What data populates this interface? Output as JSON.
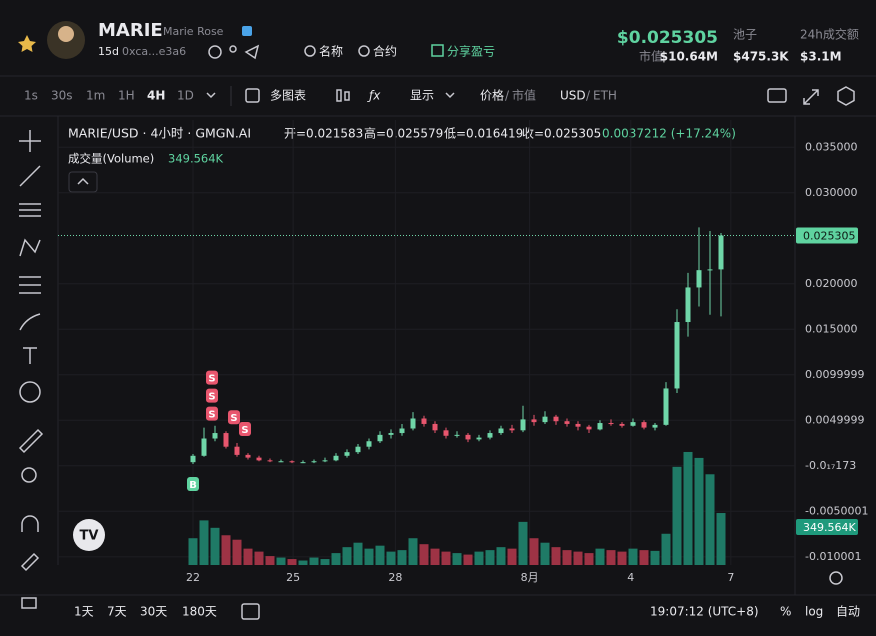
{
  "header": {
    "name": "MARIE",
    "subname": "Marie Rose",
    "age": "15d",
    "address": "0xca...e3a6",
    "links": [
      "名称",
      "合约",
      "分享盈亏"
    ],
    "price": "$0.025305",
    "stats": [
      {
        "label": "市值",
        "value": "$10.64M"
      },
      {
        "label": "池子",
        "value": "$475.3K"
      },
      {
        "label": "24h成交额",
        "value": "$3.1M"
      }
    ]
  },
  "toolbar": {
    "intervals": [
      "1s",
      "30s",
      "1m",
      "1H",
      "4H",
      "1D"
    ],
    "active": 4,
    "multi_chart": "多图表",
    "display": "显示",
    "price_toggle": [
      "价格",
      "市值"
    ],
    "currency_toggle": [
      "USD",
      "ETH"
    ],
    "separator": "/"
  },
  "chart": {
    "type": "candlestick",
    "symbol": "MARIE/USD · 4小时 · GMGN.AI",
    "ohlc": [
      "开=0.021583",
      "高=0.025579",
      "低=0.016419",
      "收=0.025305",
      "0.0037212 (+17.24%)"
    ],
    "volume_label": "成交量(Volume)",
    "volume_value": "349.564K",
    "last_price": 0.025305,
    "up_color": "#6fd6a8",
    "down_color": "#e8566e",
    "volume_up_color": "#1f7a66",
    "volume_down_color": "#9e3345",
    "ylim": [
      -0.0109,
      0.038
    ],
    "yticks": [
      {
        "value": 0.035,
        "label": "0.035000"
      },
      {
        "value": 0.03,
        "label": "0.030000"
      },
      {
        "value": 0.02,
        "label": "0.020000"
      },
      {
        "value": 0.015,
        "label": "0.015000"
      },
      0.0099999,
      0.0049999,
      {
        "value": -1.7173e-18,
        "label": "-0.0₁₇173"
      },
      -0.0050001,
      -0.010001
    ],
    "xticks": [
      {
        "value": 0,
        "label": "22"
      },
      {
        "value": 9.1,
        "label": "25"
      },
      {
        "value": 18.4,
        "label": "28"
      },
      {
        "value": 30.6,
        "label": "8月"
      },
      {
        "value": 39.8,
        "label": "4"
      },
      {
        "value": 48.9,
        "label": "7"
      }
    ],
    "candles": [
      [
        0.0004,
        0.0013,
        0.0002,
        0.0011
      ],
      [
        0.0011,
        0.0042,
        0.001,
        0.003
      ],
      [
        0.003,
        0.0044,
        0.0027,
        0.0036
      ],
      [
        0.0036,
        0.0038,
        0.0019,
        0.0021
      ],
      [
        0.0021,
        0.0025,
        0.001,
        0.0012
      ],
      [
        0.0012,
        0.0014,
        0.0007,
        0.0009
      ],
      [
        0.0009,
        0.0011,
        0.0005,
        0.0006
      ],
      [
        0.0006,
        0.0008,
        0.0004,
        0.0005
      ],
      [
        0.0005,
        0.0007,
        0.0004,
        0.0005
      ],
      [
        0.0005,
        0.0006,
        0.0003,
        0.0004
      ],
      [
        0.0004,
        0.0006,
        0.0003,
        0.0004
      ],
      [
        0.0004,
        0.0007,
        0.0003,
        0.0005
      ],
      [
        0.0005,
        0.0009,
        0.0004,
        0.0006
      ],
      [
        0.0006,
        0.0014,
        0.0005,
        0.0011
      ],
      [
        0.0011,
        0.0018,
        0.0009,
        0.0015
      ],
      [
        0.0015,
        0.0024,
        0.0013,
        0.0021
      ],
      [
        0.0021,
        0.003,
        0.0018,
        0.0027
      ],
      [
        0.0027,
        0.0038,
        0.0025,
        0.0034
      ],
      [
        0.0034,
        0.004,
        0.003,
        0.0036
      ],
      [
        0.0036,
        0.0046,
        0.0033,
        0.0041
      ],
      [
        0.0041,
        0.0059,
        0.0039,
        0.0052
      ],
      [
        0.0052,
        0.0055,
        0.0043,
        0.0046
      ],
      [
        0.0046,
        0.0049,
        0.0036,
        0.0039
      ],
      [
        0.0039,
        0.0042,
        0.003,
        0.0033
      ],
      [
        0.0033,
        0.0038,
        0.0031,
        0.0034
      ],
      [
        0.0034,
        0.0036,
        0.0026,
        0.0029
      ],
      [
        0.0029,
        0.0034,
        0.0027,
        0.0031
      ],
      [
        0.0031,
        0.0039,
        0.0029,
        0.0036
      ],
      [
        0.0036,
        0.0044,
        0.0034,
        0.0041
      ],
      [
        0.0041,
        0.0045,
        0.0036,
        0.0039
      ],
      [
        0.0039,
        0.0066,
        0.0037,
        0.0051
      ],
      [
        0.0051,
        0.0056,
        0.0044,
        0.0048
      ],
      [
        0.0048,
        0.006,
        0.0046,
        0.0054
      ],
      [
        0.0054,
        0.0056,
        0.0045,
        0.0049
      ],
      [
        0.0049,
        0.0052,
        0.0043,
        0.0046
      ],
      [
        0.0046,
        0.0049,
        0.0039,
        0.0043
      ],
      [
        0.0043,
        0.0045,
        0.0036,
        0.004
      ],
      [
        0.004,
        0.005,
        0.0039,
        0.0047
      ],
      [
        0.0047,
        0.0051,
        0.0044,
        0.0046
      ],
      [
        0.0046,
        0.0048,
        0.0042,
        0.0044
      ],
      [
        0.0044,
        0.0052,
        0.0043,
        0.0048
      ],
      [
        0.0048,
        0.005,
        0.004,
        0.0042
      ],
      [
        0.0042,
        0.0047,
        0.0039,
        0.0045
      ],
      [
        0.0045,
        0.0092,
        0.0044,
        0.0085
      ],
      [
        0.0085,
        0.0172,
        0.008,
        0.0158
      ],
      [
        0.0158,
        0.0212,
        0.0142,
        0.0196
      ],
      [
        0.0196,
        0.0262,
        0.0175,
        0.0215
      ],
      [
        0.0215,
        0.0258,
        0.0166,
        0.021583
      ],
      [
        0.021583,
        0.025579,
        0.016419,
        0.025305
      ]
    ],
    "volumes": [
      180,
      300,
      250,
      200,
      170,
      110,
      90,
      60,
      50,
      40,
      30,
      50,
      40,
      80,
      120,
      150,
      110,
      130,
      90,
      100,
      180,
      140,
      110,
      90,
      80,
      70,
      90,
      100,
      120,
      110,
      290,
      180,
      150,
      120,
      100,
      90,
      80,
      110,
      100,
      90,
      110,
      100,
      95,
      210,
      660,
      760,
      720,
      610,
      349.564
    ],
    "markers": [
      {
        "label": "B",
        "candle": 0
      },
      {
        "label": "S",
        "candle": 1
      },
      {
        "label": "S",
        "candle": 1
      },
      {
        "label": "S",
        "candle": 1
      },
      {
        "label": "S",
        "candle": 3
      },
      {
        "label": "S",
        "candle": 4
      }
    ]
  },
  "footer": {
    "ranges": [
      "1天",
      "7天",
      "30天",
      "180天"
    ],
    "time": "19:07:12 (UTC+8)",
    "toggles": [
      "%",
      "log",
      "自动"
    ]
  }
}
